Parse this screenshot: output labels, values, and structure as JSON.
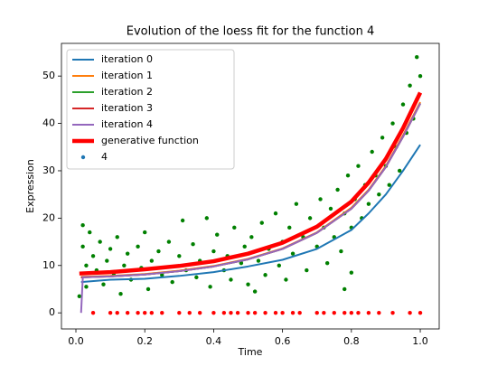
{
  "chart_data": {
    "type": "line",
    "title": "Evolution of the loess fit for the function 4",
    "x_label": "Time",
    "y_label": "Expression",
    "xlim": [
      -0.042,
      1.055
    ],
    "ylim": [
      -3.4,
      56.9
    ],
    "xticks": [
      {
        "value": 0,
        "label": "0.0"
      },
      {
        "value": 0.2,
        "label": "0.2"
      },
      {
        "value": 0.4,
        "label": "0.4"
      },
      {
        "value": 0.6,
        "label": "0.6"
      },
      {
        "value": 0.8,
        "label": "0.8"
      },
      {
        "value": 1,
        "label": "1.0"
      }
    ],
    "yticks": [
      0,
      10,
      20,
      30,
      40,
      50
    ],
    "grid": false,
    "legend": "upper left",
    "series": [
      {
        "name": "iteration 0",
        "color": "#1f77b4",
        "width": 2,
        "x": [
          0.015,
          0.1,
          0.2,
          0.3,
          0.4,
          0.5,
          0.6,
          0.7,
          0.8,
          0.85,
          0.9,
          0.95,
          1.0
        ],
        "values": [
          6.5,
          7.0,
          7.2,
          7.8,
          8.6,
          9.8,
          11.2,
          13.5,
          17.5,
          21,
          25,
          30,
          35.5
        ]
      },
      {
        "name": "iteration 1",
        "color": "#ff7f0e",
        "width": 2,
        "x": [
          0.015,
          0.1,
          0.2,
          0.3,
          0.4,
          0.5,
          0.6,
          0.7,
          0.8,
          0.85,
          0.9,
          0.95,
          1.0
        ],
        "values": [
          7.6,
          7.8,
          8.2,
          8.9,
          9.9,
          11.4,
          13.6,
          17.0,
          22.2,
          26.0,
          31.0,
          37.5,
          44.5
        ]
      },
      {
        "name": "iteration 2",
        "color": "#2ca02c",
        "width": 2,
        "x": [
          0.015,
          0.1,
          0.2,
          0.3,
          0.4,
          0.5,
          0.6,
          0.7,
          0.8,
          0.85,
          0.9,
          0.95,
          1.0
        ],
        "values": [
          7.5,
          7.7,
          8.1,
          8.8,
          9.8,
          11.3,
          13.5,
          16.9,
          22.0,
          25.8,
          30.8,
          37.2,
          44.2
        ]
      },
      {
        "name": "iteration 3",
        "color": "#d62728",
        "width": 2,
        "x": [
          0.015,
          0.1,
          0.2,
          0.3,
          0.4,
          0.5,
          0.6,
          0.7,
          0.8,
          0.85,
          0.9,
          0.95,
          1.0
        ],
        "values": [
          7.5,
          7.7,
          8.1,
          8.8,
          9.8,
          11.3,
          13.5,
          16.9,
          22.0,
          25.8,
          30.8,
          37.2,
          44.2
        ]
      },
      {
        "name": "iteration 4",
        "color": "#9467bd",
        "width": 2,
        "x": [
          0.015,
          0.02,
          0.1,
          0.2,
          0.3,
          0.4,
          0.5,
          0.6,
          0.7,
          0.8,
          0.85,
          0.9,
          0.95,
          1.0
        ],
        "values": [
          0,
          7.5,
          7.7,
          8.1,
          8.8,
          9.8,
          11.3,
          13.5,
          16.9,
          22.0,
          25.8,
          30.8,
          37.2,
          44.2
        ]
      },
      {
        "name": "generative function",
        "color": "#ff0000",
        "width": 4.5,
        "x": [
          0.01,
          0.1,
          0.2,
          0.3,
          0.4,
          0.5,
          0.6,
          0.7,
          0.8,
          0.85,
          0.9,
          0.95,
          1.0
        ],
        "values": [
          8.3,
          8.6,
          9.2,
          9.9,
          10.9,
          12.5,
          14.8,
          18.2,
          23.5,
          27.5,
          32.5,
          39,
          46.5
        ]
      }
    ],
    "scatter": {
      "name": "4",
      "color": "#1f77b4",
      "x": [
        0.01,
        0.02,
        0.02,
        0.03,
        0.03,
        0.04,
        0.05,
        0.06,
        0.07,
        0.08,
        0.09,
        0.1,
        0.11,
        0.12,
        0.13,
        0.14,
        0.15,
        0.16,
        0.18,
        0.19,
        0.2,
        0.21,
        0.22,
        0.24,
        0.25,
        0.27,
        0.28,
        0.3,
        0.31,
        0.32,
        0.34,
        0.35,
        0.36,
        0.38,
        0.39,
        0.4,
        0.41,
        0.43,
        0.44,
        0.45,
        0.46,
        0.48,
        0.49,
        0.5,
        0.51,
        0.53,
        0.54,
        0.55,
        0.56,
        0.58,
        0.59,
        0.6,
        0.61,
        0.62,
        0.63,
        0.64,
        0.66,
        0.67,
        0.68,
        0.7,
        0.71,
        0.72,
        0.73,
        0.74,
        0.75,
        0.76,
        0.77,
        0.78,
        0.79,
        0.8,
        0.81,
        0.82,
        0.83,
        0.84,
        0.85,
        0.86,
        0.87,
        0.88,
        0.89,
        0.9,
        0.91,
        0.92,
        0.93,
        0.94,
        0.95,
        0.96,
        0.97,
        0.98,
        0.99,
        1.0,
        0.99,
        0.8,
        0.78,
        0.52,
        0.05,
        0.1,
        0.12,
        0.15,
        0.18,
        0.2,
        0.22,
        0.25,
        0.3,
        0.33,
        0.36,
        0.4,
        0.43,
        0.45,
        0.47,
        0.5,
        0.52,
        0.55,
        0.58,
        0.6,
        0.63,
        0.65,
        0.7,
        0.72,
        0.75,
        0.78,
        0.8,
        0.82,
        0.85,
        0.88,
        0.92,
        0.97,
        1.0
      ],
      "values": [
        3.5,
        18.5,
        14,
        10,
        5.5,
        17,
        12,
        9,
        15,
        6,
        11,
        13.5,
        8,
        16,
        4,
        10,
        12.5,
        7,
        14,
        9.5,
        17,
        5,
        11,
        13,
        8,
        15,
        6.5,
        12,
        19.5,
        9,
        14.5,
        7.5,
        11,
        20,
        5.5,
        13,
        16.5,
        9,
        12,
        7,
        18,
        10.5,
        14,
        6,
        16,
        11,
        19,
        8,
        13.5,
        21,
        10,
        15,
        7,
        18,
        12.5,
        23,
        16,
        9,
        20,
        14,
        24,
        18,
        10.5,
        22,
        16,
        26,
        13,
        21,
        29,
        18,
        24,
        31,
        20,
        27,
        23,
        34,
        29,
        25,
        37,
        31,
        27,
        40,
        35,
        30,
        44,
        38,
        48,
        41,
        54,
        50,
        45,
        8.5,
        5,
        4.5,
        0,
        0,
        0,
        0,
        0,
        0,
        0,
        0,
        0,
        0,
        0,
        0,
        0,
        0,
        0,
        0,
        0,
        0,
        0,
        0,
        0,
        0,
        0,
        0,
        0,
        0,
        0,
        0,
        0,
        0,
        0,
        0,
        0
      ],
      "point_colors": [
        "green",
        "green",
        "green",
        "green",
        "green",
        "green",
        "green",
        "green",
        "green",
        "green",
        "green",
        "green",
        "green",
        "green",
        "green",
        "green",
        "green",
        "green",
        "green",
        "green",
        "green",
        "green",
        "green",
        "green",
        "green",
        "green",
        "green",
        "green",
        "green",
        "green",
        "green",
        "green",
        "green",
        "green",
        "green",
        "green",
        "green",
        "green",
        "green",
        "green",
        "green",
        "green",
        "green",
        "green",
        "green",
        "green",
        "green",
        "green",
        "green",
        "green",
        "green",
        "green",
        "green",
        "green",
        "green",
        "green",
        "green",
        "green",
        "green",
        "green",
        "green",
        "green",
        "green",
        "green",
        "green",
        "green",
        "green",
        "green",
        "green",
        "green",
        "green",
        "green",
        "green",
        "green",
        "green",
        "green",
        "green",
        "green",
        "green",
        "green",
        "green",
        "green",
        "green",
        "green",
        "green",
        "green",
        "green",
        "green",
        "green",
        "green",
        "green",
        "green",
        "green",
        "green",
        "red",
        "red",
        "red",
        "red",
        "red",
        "red",
        "red",
        "red",
        "red",
        "red",
        "red",
        "red",
        "red",
        "red",
        "red",
        "red",
        "red",
        "red",
        "red",
        "red",
        "red",
        "red",
        "red",
        "red",
        "red",
        "red",
        "red",
        "red",
        "red",
        "red",
        "red",
        "red",
        "red"
      ]
    }
  }
}
